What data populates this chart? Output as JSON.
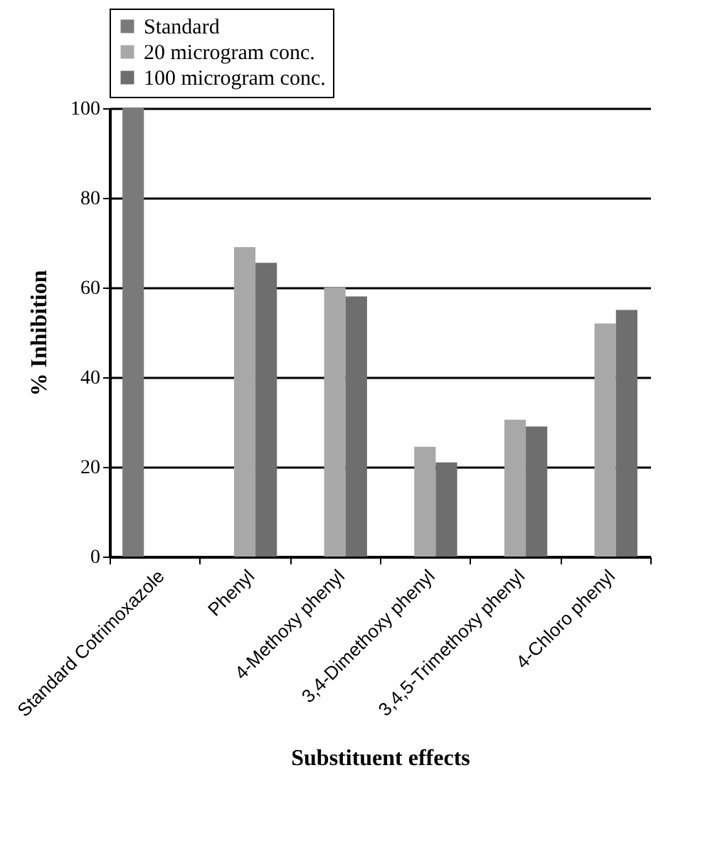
{
  "chart_data": {
    "type": "bar",
    "xlabel": "Substituent effects",
    "ylabel": "% Inhibition",
    "categories": [
      "Standard Cotrimoxazole",
      "Phenyl",
      "4-Methoxy phenyl",
      "3,4-Dimethoxy phenyl",
      "3,4,5-Trimethoxy phenyl",
      "4-Chloro phenyl"
    ],
    "series": [
      {
        "name": "Standard",
        "color": "#7a7a7a",
        "values": [
          100,
          null,
          null,
          null,
          null,
          null
        ]
      },
      {
        "name": "20 microgram conc.",
        "color": "#a8a8a8",
        "values": [
          null,
          69,
          60,
          24.5,
          30.5,
          52
        ]
      },
      {
        "name": "100 microgram conc.",
        "color": "#6e6e6e",
        "values": [
          null,
          65.5,
          58,
          21,
          29,
          55
        ]
      }
    ],
    "ylim": [
      0,
      100
    ],
    "yticks": [
      0,
      20,
      40,
      60,
      80,
      100
    ],
    "grid": "y",
    "legend": "top"
  }
}
